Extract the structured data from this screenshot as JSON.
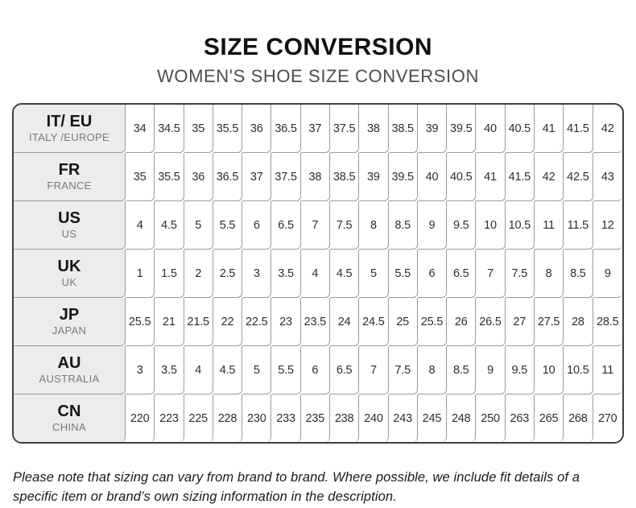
{
  "header": {
    "title": "SIZE CONVERSION",
    "subtitle": "WOMEN'S SHOE SIZE CONVERSION"
  },
  "chart_data": {
    "type": "table",
    "title": "SIZE CONVERSION",
    "subtitle": "WOMEN'S SHOE SIZE CONVERSION",
    "row_header_columns": [
      "code",
      "region"
    ],
    "rows": [
      {
        "code": "IT/ EU",
        "region": "ITALY /EUROPE",
        "values": [
          "34",
          "34.5",
          "35",
          "35.5",
          "36",
          "36.5",
          "37",
          "37.5",
          "38",
          "38.5",
          "39",
          "39.5",
          "40",
          "40.5",
          "41",
          "41.5",
          "42"
        ]
      },
      {
        "code": "FR",
        "region": "FRANCE",
        "values": [
          "35",
          "35.5",
          "36",
          "36.5",
          "37",
          "37.5",
          "38",
          "38.5",
          "39",
          "39.5",
          "40",
          "40.5",
          "41",
          "41.5",
          "42",
          "42.5",
          "43"
        ]
      },
      {
        "code": "US",
        "region": "US",
        "values": [
          "4",
          "4.5",
          "5",
          "5.5",
          "6",
          "6.5",
          "7",
          "7.5",
          "8",
          "8.5",
          "9",
          "9.5",
          "10",
          "10.5",
          "11",
          "11.5",
          "12"
        ]
      },
      {
        "code": "UK",
        "region": "UK",
        "values": [
          "1",
          "1.5",
          "2",
          "2.5",
          "3",
          "3.5",
          "4",
          "4.5",
          "5",
          "5.5",
          "6",
          "6.5",
          "7",
          "7.5",
          "8",
          "8.5",
          "9"
        ]
      },
      {
        "code": "JP",
        "region": "JAPAN",
        "values": [
          "25.5",
          "21",
          "21.5",
          "22",
          "22.5",
          "23",
          "23.5",
          "24",
          "24.5",
          "25",
          "25.5",
          "26",
          "26.5",
          "27",
          "27.5",
          "28",
          "28.5"
        ]
      },
      {
        "code": "AU",
        "region": "AUSTRALIA",
        "values": [
          "3",
          "3.5",
          "4",
          "4.5",
          "5",
          "5.5",
          "6",
          "6.5",
          "7",
          "7.5",
          "8",
          "8.5",
          "9",
          "9.5",
          "10",
          "10.5",
          "11"
        ]
      },
      {
        "code": "CN",
        "region": "CHINA",
        "values": [
          "220",
          "223",
          "225",
          "228",
          "230",
          "233",
          "235",
          "238",
          "240",
          "243",
          "245",
          "248",
          "250",
          "263",
          "265",
          "268",
          "270"
        ]
      }
    ]
  },
  "footer": {
    "note": "Please note that sizing can vary from brand to brand. Where possible, we include fit details of a specific item or brand’s own sizing information in the description."
  },
  "colors": {
    "outer_border": "#3f3f3f",
    "grid_line": "#9b9b9b",
    "label_cell_bg": "#ececec",
    "title_text": "#111111",
    "subtitle_text": "#4d4d4d",
    "region_text": "#7a7a7a",
    "cell_text": "#2e2e2e"
  }
}
